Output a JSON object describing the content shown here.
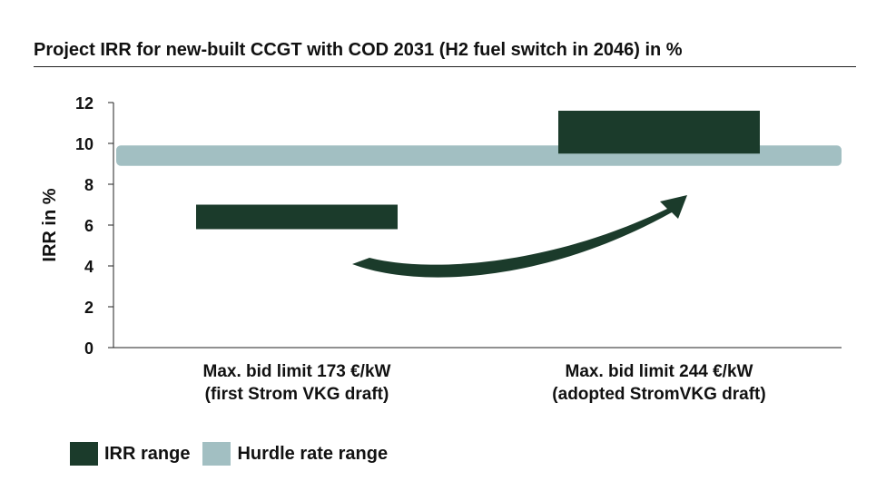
{
  "chart_data": {
    "type": "bar",
    "title": "Project IRR for new-built CCGT with COD 2031 (H2 fuel switch in 2046) in %",
    "ylabel": "IRR in %",
    "xlabel": "",
    "ylim": [
      0,
      12
    ],
    "yticks": [
      0,
      2,
      4,
      6,
      8,
      10,
      12
    ],
    "categories": [
      [
        "Max. bid limit 173 €/kW",
        "(first Strom VKG draft)"
      ],
      [
        "Max. bid limit 244 €/kW",
        "(adopted StromVKG draft)"
      ]
    ],
    "irr_ranges": [
      {
        "low": 5.8,
        "high": 7.0
      },
      {
        "low": 9.5,
        "high": 11.6
      }
    ],
    "hurdle_rate_range": {
      "low": 8.9,
      "high": 9.9
    },
    "legend": [
      {
        "name": "IRR range",
        "color": "#1b3b2b"
      },
      {
        "name": "Hurdle rate range",
        "color": "#a2bfc2"
      }
    ],
    "legend_position": "bottom-left",
    "grid": false,
    "colors": {
      "irr": "#1b3b2b",
      "hurdle": "#a2bfc2",
      "arrow": "#1b3b2b"
    }
  }
}
